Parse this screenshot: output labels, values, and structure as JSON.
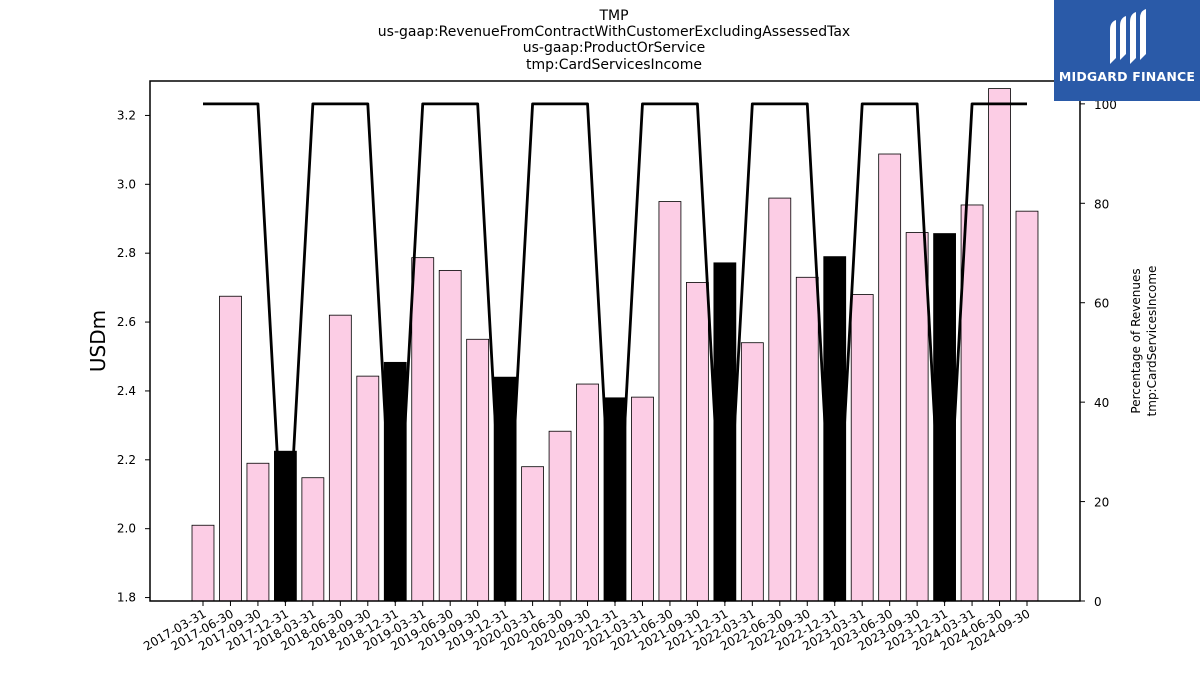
{
  "chart_data": {
    "type": "bar",
    "title_lines": [
      "TMP",
      "us-gaap:RevenueFromContractWithCustomerExcludingAssessedTax",
      "us-gaap:ProductOrService",
      "tmp:CardServicesIncome"
    ],
    "ylabel": "USDm",
    "ylabel_right_lines": [
      "Percentage of Revenues",
      "tmp:CardServicesIncome"
    ],
    "ylim": [
      1.79,
      3.3
    ],
    "yticks": [
      "1.8",
      "2.0",
      "2.2",
      "2.4",
      "2.6",
      "2.8",
      "3.0",
      "3.2"
    ],
    "ylim_right": [
      0,
      104.6
    ],
    "yticks_right": [
      "0",
      "20",
      "40",
      "60",
      "80",
      "100"
    ],
    "categories": [
      "2017-03-31",
      "2017-06-30",
      "2017-09-30",
      "2017-12-31",
      "2018-03-31",
      "2018-06-30",
      "2018-09-30",
      "2018-12-31",
      "2019-03-31",
      "2019-06-30",
      "2019-09-30",
      "2019-12-31",
      "2020-03-31",
      "2020-06-30",
      "2020-09-30",
      "2020-12-31",
      "2021-03-31",
      "2021-06-30",
      "2021-09-30",
      "2021-12-31",
      "2022-03-31",
      "2022-06-30",
      "2022-09-30",
      "2022-12-31",
      "2023-03-31",
      "2023-06-30",
      "2023-09-30",
      "2023-12-31",
      "2024-03-31",
      "2024-06-30",
      "2024-09-30"
    ],
    "values": [
      2.01,
      2.675,
      2.19,
      2.225,
      2.148,
      2.62,
      2.443,
      2.483,
      2.787,
      2.75,
      2.55,
      2.44,
      2.18,
      2.283,
      2.42,
      2.38,
      2.382,
      2.95,
      2.715,
      2.772,
      2.54,
      2.96,
      2.73,
      2.79,
      2.68,
      3.088,
      2.86,
      2.857,
      2.94,
      3.278,
      2.922
    ],
    "highlighted": [
      false,
      false,
      false,
      true,
      false,
      false,
      false,
      true,
      false,
      false,
      false,
      true,
      false,
      false,
      false,
      true,
      false,
      false,
      false,
      true,
      false,
      false,
      false,
      true,
      false,
      false,
      false,
      true,
      false,
      false,
      false
    ],
    "percentage": [
      100,
      100,
      100,
      0,
      100,
      100,
      100,
      0,
      100,
      100,
      100,
      0,
      100,
      100,
      100,
      0,
      100,
      100,
      100,
      0,
      100,
      100,
      100,
      0,
      100,
      100,
      100,
      0,
      100,
      100,
      100
    ],
    "colors": {
      "bar": "#fccde5",
      "bar_highlight": "#000000",
      "bar_edge": "#000000",
      "line": "#000000"
    }
  },
  "logo": {
    "text": "MIDGARD FINANCE",
    "background": "#2a5aa8"
  }
}
